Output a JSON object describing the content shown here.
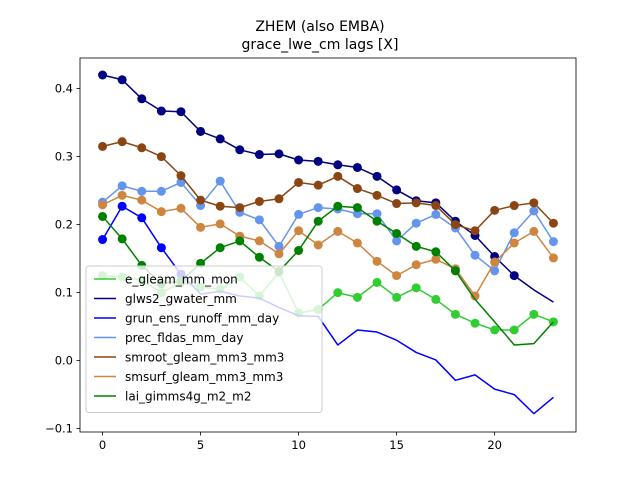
{
  "chart_data": {
    "type": "line",
    "title": "ZHEM (also EMBA)",
    "subtitle": "grace_lwe_cm lags [X]",
    "xlabel": "",
    "ylabel": "",
    "xlim": [
      -1.15,
      24.15
    ],
    "ylim": [
      -0.105,
      0.445
    ],
    "xticks": [
      0,
      5,
      10,
      15,
      20
    ],
    "yticks": [
      -0.1,
      0.0,
      0.1,
      0.2,
      0.3,
      0.4
    ],
    "ytick_labels": [
      "−0.1",
      "0.0",
      "0.1",
      "0.2",
      "0.3",
      "0.4"
    ],
    "grid": false,
    "legend_position": "lower-left",
    "x": [
      0,
      1,
      2,
      3,
      4,
      5,
      6,
      7,
      8,
      9,
      10,
      11,
      12,
      13,
      14,
      15,
      16,
      17,
      18,
      19,
      20,
      21,
      22,
      23
    ],
    "series": [
      {
        "name": "e_gleam_mm_mon",
        "color": "#32cd32",
        "values": [
          0.125,
          0.123,
          0.118,
          0.1,
          0.115,
          0.108,
          0.105,
          0.123,
          0.095,
          0.13,
          0.07,
          0.075,
          0.1,
          0.093,
          0.115,
          0.093,
          0.107,
          0.09,
          0.068,
          0.055,
          0.045,
          0.045,
          0.068,
          0.057
        ],
        "markers": [
          0,
          1,
          2,
          3,
          4,
          5,
          6,
          7,
          8,
          9,
          10,
          11,
          12,
          13,
          14,
          15,
          16,
          17,
          18,
          19,
          20,
          21,
          22,
          23
        ]
      },
      {
        "name": "glws2_gwater_mm",
        "color": "#000080",
        "values": [
          0.42,
          0.413,
          0.385,
          0.367,
          0.366,
          0.337,
          0.326,
          0.31,
          0.303,
          0.304,
          0.295,
          0.293,
          0.288,
          0.284,
          0.271,
          0.251,
          0.235,
          0.232,
          0.205,
          0.184,
          0.153,
          0.125,
          0.104,
          0.086
        ],
        "markers": [
          0,
          1,
          2,
          3,
          4,
          5,
          6,
          7,
          8,
          9,
          10,
          11,
          12,
          13,
          14,
          15,
          16,
          17,
          18,
          19,
          20,
          21
        ]
      },
      {
        "name": "grun_ens_runoff_mm_day",
        "color": "#0000ff",
        "values": [
          0.178,
          0.227,
          0.21,
          0.166,
          0.127,
          0.098,
          0.102,
          0.095,
          0.092,
          0.078,
          0.066,
          0.065,
          0.023,
          0.045,
          0.042,
          0.03,
          0.012,
          0.001,
          -0.029,
          -0.021,
          -0.042,
          -0.05,
          -0.078,
          -0.054
        ],
        "markers": [
          0,
          1,
          2,
          3,
          4
        ]
      },
      {
        "name": "prec_fldas_mm_day",
        "color": "#6495ed",
        "values": [
          0.233,
          0.257,
          0.249,
          0.249,
          0.262,
          0.228,
          0.264,
          0.218,
          0.207,
          0.168,
          0.215,
          0.225,
          0.223,
          0.216,
          0.216,
          0.176,
          0.202,
          0.215,
          0.195,
          0.155,
          0.132,
          0.188,
          0.22,
          0.175
        ],
        "markers": [
          0,
          1,
          2,
          3,
          4,
          5,
          6,
          7,
          8,
          9,
          10,
          11,
          12,
          13,
          14,
          15,
          16,
          17,
          18,
          19,
          20,
          21,
          22,
          23
        ]
      },
      {
        "name": "smroot_gleam_mm3_mm3",
        "color": "#8b4513",
        "values": [
          0.315,
          0.322,
          0.313,
          0.3,
          0.272,
          0.236,
          0.227,
          0.225,
          0.234,
          0.238,
          0.262,
          0.258,
          0.271,
          0.253,
          0.243,
          0.231,
          0.232,
          0.228,
          0.2,
          0.191,
          0.221,
          0.228,
          0.232,
          0.202
        ],
        "markers": [
          0,
          1,
          2,
          3,
          4,
          5,
          6,
          7,
          8,
          9,
          10,
          11,
          12,
          13,
          14,
          15,
          16,
          17,
          18,
          19,
          20,
          21,
          22,
          23
        ]
      },
      {
        "name": "smsurf_gleam_mm3_mm3",
        "color": "#cd853f",
        "values": [
          0.229,
          0.243,
          0.236,
          0.219,
          0.224,
          0.196,
          0.201,
          0.183,
          0.176,
          0.157,
          0.191,
          0.17,
          0.19,
          0.173,
          0.146,
          0.125,
          0.141,
          0.149,
          0.135,
          0.095,
          0.145,
          0.173,
          0.19,
          0.151
        ],
        "markers": [
          0,
          1,
          2,
          3,
          4,
          5,
          6,
          7,
          8,
          9,
          10,
          11,
          12,
          13,
          14,
          15,
          16,
          17,
          18,
          19,
          20,
          21,
          22,
          23
        ]
      },
      {
        "name": "lai_gimms4g_m2_m2",
        "color": "#008000",
        "values": [
          0.212,
          0.179,
          0.14,
          0.113,
          0.117,
          0.143,
          0.166,
          0.176,
          0.152,
          0.131,
          0.162,
          0.205,
          0.227,
          0.225,
          0.205,
          0.187,
          0.168,
          0.16,
          0.132,
          0.09,
          0.057,
          0.023,
          0.025,
          0.057
        ],
        "markers": [
          0,
          1,
          2,
          3,
          4,
          5,
          6,
          7,
          8,
          9,
          10,
          11,
          12,
          13,
          14,
          15,
          16,
          17,
          18
        ]
      }
    ]
  }
}
